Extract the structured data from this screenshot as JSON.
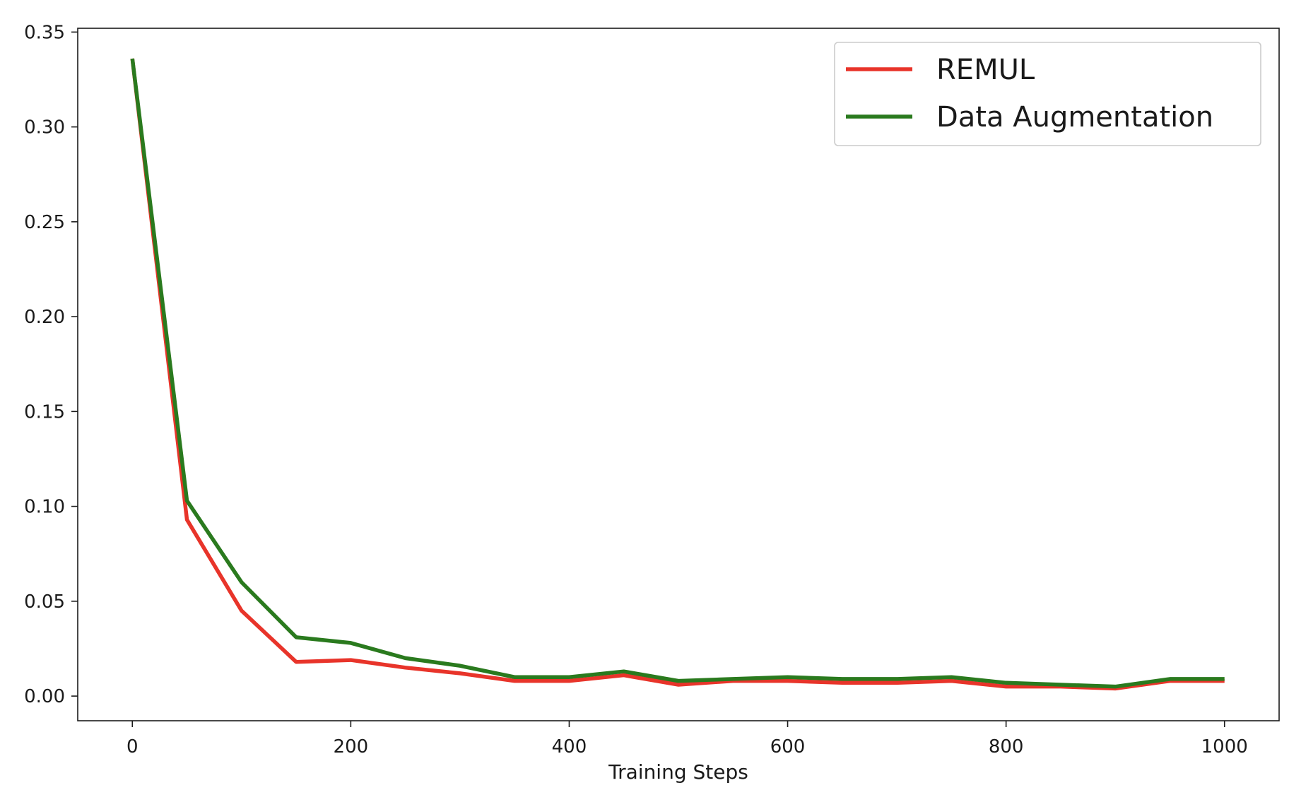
{
  "chart_data": {
    "type": "line",
    "title": "",
    "xlabel": "Training Steps",
    "ylabel": "",
    "xlim": [
      -50,
      1050
    ],
    "ylim": [
      -0.013,
      0.352
    ],
    "xticks": [
      0,
      200,
      400,
      600,
      800,
      1000
    ],
    "xtick_labels": [
      "0",
      "200",
      "400",
      "600",
      "800",
      "1000"
    ],
    "yticks": [
      0.0,
      0.05,
      0.1,
      0.15,
      0.2,
      0.25,
      0.3,
      0.35
    ],
    "ytick_labels": [
      "0.00",
      "0.05",
      "0.10",
      "0.15",
      "0.20",
      "0.25",
      "0.30",
      "0.35"
    ],
    "grid": false,
    "legend_position": "top-right",
    "x": [
      0,
      50,
      100,
      150,
      200,
      250,
      300,
      350,
      400,
      450,
      500,
      550,
      600,
      650,
      700,
      750,
      800,
      850,
      900,
      950,
      1000
    ],
    "series": [
      {
        "name": "REMUL",
        "color": "#e8342a",
        "values": [
          0.336,
          0.093,
          0.045,
          0.018,
          0.019,
          0.015,
          0.012,
          0.008,
          0.008,
          0.011,
          0.006,
          0.008,
          0.008,
          0.007,
          0.007,
          0.008,
          0.005,
          0.005,
          0.004,
          0.008,
          0.008
        ]
      },
      {
        "name": "Data Augmentation",
        "color": "#2a7a1e",
        "values": [
          0.336,
          0.103,
          0.06,
          0.031,
          0.028,
          0.02,
          0.016,
          0.01,
          0.01,
          0.013,
          0.008,
          0.009,
          0.01,
          0.009,
          0.009,
          0.01,
          0.007,
          0.006,
          0.005,
          0.009,
          0.009
        ]
      }
    ]
  }
}
